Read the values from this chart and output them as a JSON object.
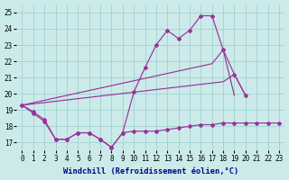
{
  "x": [
    0,
    1,
    2,
    3,
    4,
    5,
    6,
    7,
    8,
    9,
    10,
    11,
    12,
    13,
    14,
    15,
    16,
    17,
    18,
    19,
    20,
    21,
    22,
    23
  ],
  "line_wavy": [
    19.3,
    18.9,
    18.4,
    17.2,
    17.2,
    17.6,
    17.6,
    17.2,
    16.7,
    17.6,
    20.1,
    21.6,
    23.0,
    23.9,
    23.4,
    23.9,
    24.8,
    24.8,
    22.7,
    21.2,
    19.9,
    null,
    null,
    null
  ],
  "line_upper_diag": [
    19.3,
    19.45,
    19.6,
    19.75,
    19.9,
    20.05,
    20.2,
    20.35,
    20.5,
    20.65,
    20.8,
    20.95,
    21.1,
    21.25,
    21.4,
    21.55,
    21.7,
    21.85,
    22.7,
    19.9,
    null,
    null,
    null,
    null
  ],
  "line_lower_diag": [
    19.3,
    19.38,
    19.46,
    19.54,
    19.62,
    19.7,
    19.78,
    19.86,
    19.94,
    20.02,
    20.1,
    20.18,
    20.26,
    20.34,
    20.42,
    20.5,
    20.58,
    20.66,
    20.74,
    21.2,
    19.9,
    null,
    null,
    null
  ],
  "line_flat": [
    19.3,
    18.8,
    18.3,
    17.2,
    17.2,
    17.6,
    17.6,
    17.2,
    16.7,
    17.6,
    17.7,
    17.7,
    17.7,
    17.8,
    17.9,
    18.0,
    18.1,
    18.1,
    18.2,
    18.2,
    18.2,
    18.2,
    18.2,
    18.2
  ],
  "line_color": "#993399",
  "bg_color": "#cceaea",
  "grid_color": "#99cccc",
  "xlabel": "Windchill (Refroidissement éolien,°C)",
  "xlim": [
    -0.5,
    23.5
  ],
  "ylim": [
    16.5,
    25.5
  ],
  "yticks": [
    17,
    18,
    19,
    20,
    21,
    22,
    23,
    24,
    25
  ],
  "xticks": [
    0,
    1,
    2,
    3,
    4,
    5,
    6,
    7,
    8,
    9,
    10,
    11,
    12,
    13,
    14,
    15,
    16,
    17,
    18,
    19,
    20,
    21,
    22,
    23
  ],
  "tick_fontsize": 5.5,
  "xlabel_fontsize": 6.2,
  "marker_size": 2.0,
  "line_width": 0.85
}
